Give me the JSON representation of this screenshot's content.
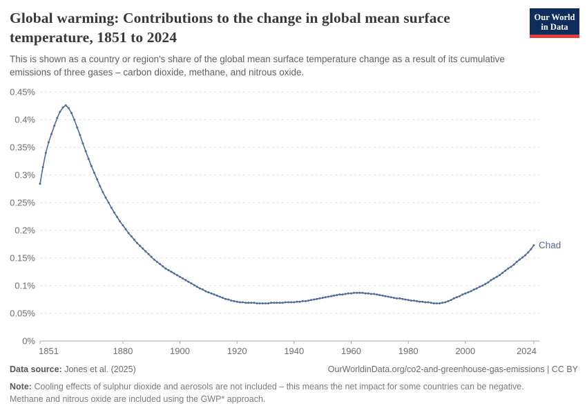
{
  "header": {
    "title_lines": [
      "Global warming: Contributions to the change in global mean surface",
      "temperature, 1851 to 2024"
    ],
    "subtitle_lines": [
      "This is shown as a country or region's share of the global mean surface temperature change as a result of its cumulative",
      "emissions of three gases – carbon dioxide, methane, and nitrous oxide."
    ],
    "logo": {
      "line1": "Our World",
      "line2": "in Data",
      "bg_color": "#0e2d5a",
      "bar_color": "#e0413c"
    }
  },
  "chart_data": {
    "type": "line",
    "title": "Global warming: Contributions to the change in global mean surface temperature, 1851 to 2024",
    "subtitle": "This is shown as a country or region's share of the global mean surface temperature change as a result of its cumulative emissions of three gases – carbon dioxide, methane, and nitrous oxide.",
    "xlabel": "",
    "ylabel": "",
    "xlim": [
      1851,
      2024
    ],
    "ylim": [
      0,
      0.45
    ],
    "unit": "%",
    "grid": "dashed-horizontal",
    "legend_position": "end-of-line-label",
    "x_ticks": [
      {
        "year": 1851,
        "label": "1851"
      },
      {
        "year": 1880,
        "label": "1880"
      },
      {
        "year": 1900,
        "label": "1900"
      },
      {
        "year": 1920,
        "label": "1920"
      },
      {
        "year": 1940,
        "label": "1940"
      },
      {
        "year": 1960,
        "label": "1960"
      },
      {
        "year": 1980,
        "label": "1980"
      },
      {
        "year": 2000,
        "label": "2000"
      },
      {
        "year": 2024,
        "label": "2024"
      }
    ],
    "y_ticks": [
      {
        "v": 0,
        "label": "0%"
      },
      {
        "v": 0.05,
        "label": "0.05%"
      },
      {
        "v": 0.1,
        "label": "0.1%"
      },
      {
        "v": 0.15,
        "label": "0.15%"
      },
      {
        "v": 0.2,
        "label": "0.2%"
      },
      {
        "v": 0.25,
        "label": "0.25%"
      },
      {
        "v": 0.3,
        "label": "0.3%"
      },
      {
        "v": 0.35,
        "label": "0.35%"
      },
      {
        "v": 0.4,
        "label": "0.4%"
      },
      {
        "v": 0.45,
        "label": "0.45%"
      }
    ],
    "series": [
      {
        "name": "Chad",
        "color": "#4c6a9c",
        "start_year": 1851,
        "end_year": 2024,
        "cadence": "annual",
        "values": [
          0.284,
          0.314,
          0.34,
          0.359,
          0.374,
          0.389,
          0.403,
          0.414,
          0.422,
          0.426,
          0.421,
          0.412,
          0.4,
          0.386,
          0.372,
          0.357,
          0.343,
          0.329,
          0.316,
          0.304,
          0.292,
          0.28,
          0.269,
          0.259,
          0.25,
          0.241,
          0.232,
          0.224,
          0.216,
          0.209,
          0.202,
          0.195,
          0.189,
          0.183,
          0.177,
          0.172,
          0.167,
          0.162,
          0.157,
          0.152,
          0.147,
          0.143,
          0.139,
          0.135,
          0.131,
          0.128,
          0.125,
          0.122,
          0.119,
          0.116,
          0.113,
          0.11,
          0.107,
          0.104,
          0.101,
          0.098,
          0.095,
          0.093,
          0.09,
          0.088,
          0.086,
          0.084,
          0.082,
          0.08,
          0.078,
          0.076,
          0.075,
          0.073,
          0.072,
          0.071,
          0.07,
          0.07,
          0.069,
          0.069,
          0.069,
          0.069,
          0.068,
          0.068,
          0.068,
          0.068,
          0.068,
          0.069,
          0.069,
          0.069,
          0.069,
          0.069,
          0.07,
          0.07,
          0.07,
          0.07,
          0.071,
          0.071,
          0.072,
          0.072,
          0.073,
          0.074,
          0.075,
          0.076,
          0.077,
          0.078,
          0.079,
          0.08,
          0.081,
          0.082,
          0.083,
          0.084,
          0.084,
          0.085,
          0.086,
          0.086,
          0.087,
          0.087,
          0.087,
          0.087,
          0.086,
          0.086,
          0.085,
          0.085,
          0.084,
          0.083,
          0.082,
          0.081,
          0.08,
          0.079,
          0.078,
          0.077,
          0.077,
          0.076,
          0.075,
          0.074,
          0.073,
          0.073,
          0.072,
          0.071,
          0.071,
          0.07,
          0.07,
          0.069,
          0.068,
          0.068,
          0.068,
          0.069,
          0.07,
          0.072,
          0.074,
          0.077,
          0.079,
          0.081,
          0.084,
          0.086,
          0.088,
          0.09,
          0.093,
          0.095,
          0.098,
          0.1,
          0.103,
          0.106,
          0.11,
          0.113,
          0.116,
          0.119,
          0.123,
          0.127,
          0.131,
          0.134,
          0.138,
          0.143,
          0.147,
          0.151,
          0.155,
          0.16,
          0.166,
          0.173
        ]
      }
    ]
  },
  "footer": {
    "source_label": "Data source:",
    "source_value": " Jones et al. (2025)",
    "attribution": "OurWorldinData.org/co2-and-greenhouse-gas-emissions | CC BY",
    "note_label": "Note:",
    "note_lines": [
      "Cooling effects of sulphur dioxide and aerosols are not included – this means the net impact for some countries can be negative.",
      "Methane and nitrous oxide are included using the GWP* approach."
    ]
  },
  "colors": {
    "line": "#4c6a9c",
    "gridline": "#e0e0e0",
    "axis": "#a5a5a5",
    "tick_text": "#6d6d6d"
  }
}
